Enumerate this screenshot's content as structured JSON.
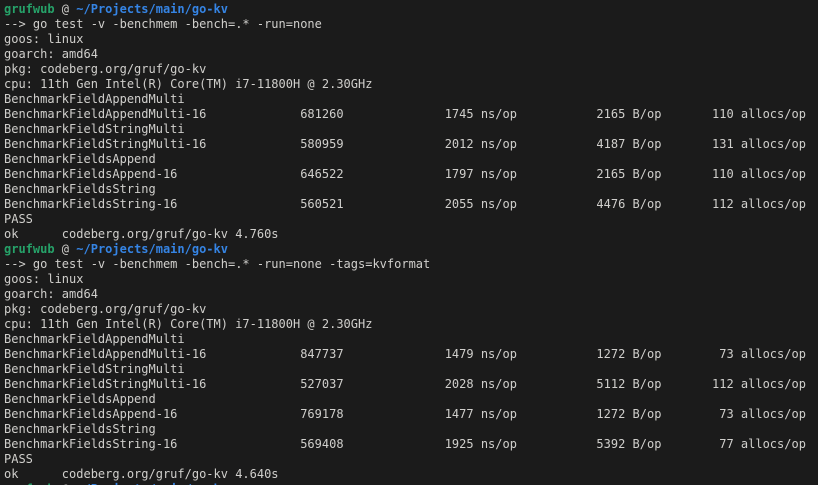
{
  "terminal": {
    "colors": {
      "background": "#1b1b1b",
      "foreground": "#d0cfcc",
      "prompt_user_green": "#26a269",
      "prompt_path_blue": "#3584e4"
    },
    "prompt": {
      "user": "grufwub",
      "separator": " @ ",
      "path": "~/Projects/main/go-kv"
    },
    "runs": [
      {
        "command": "--> go test -v -benchmem -bench=.* -run=none",
        "env_lines": [
          "goos: linux",
          "goarch: amd64",
          "pkg: codeberg.org/gruf/go-kv",
          "cpu: 11th Gen Intel(R) Core(TM) i7-11800H @ 2.30GHz"
        ],
        "benchmarks": [
          {
            "group": "BenchmarkFieldAppendMulti",
            "name": "BenchmarkFieldAppendMulti-16",
            "iterations": "681260",
            "ns_per_op": "1745 ns/op",
            "bytes_per_op": "2165 B/op",
            "allocs_per_op": "110 allocs/op"
          },
          {
            "group": "BenchmarkFieldStringMulti",
            "name": "BenchmarkFieldStringMulti-16",
            "iterations": "580959",
            "ns_per_op": "2012 ns/op",
            "bytes_per_op": "4187 B/op",
            "allocs_per_op": "131 allocs/op"
          },
          {
            "group": "BenchmarkFieldsAppend",
            "name": "BenchmarkFieldsAppend-16",
            "iterations": "646522",
            "ns_per_op": "1797 ns/op",
            "bytes_per_op": "2165 B/op",
            "allocs_per_op": "110 allocs/op"
          },
          {
            "group": "BenchmarkFieldsString",
            "name": "BenchmarkFieldsString-16",
            "iterations": "560521",
            "ns_per_op": "2055 ns/op",
            "bytes_per_op": "4476 B/op",
            "allocs_per_op": "112 allocs/op"
          }
        ],
        "pass": "PASS",
        "ok": "ok      codeberg.org/gruf/go-kv 4.760s"
      },
      {
        "command": "--> go test -v -benchmem -bench=.* -run=none -tags=kvformat",
        "env_lines": [
          "goos: linux",
          "goarch: amd64",
          "pkg: codeberg.org/gruf/go-kv",
          "cpu: 11th Gen Intel(R) Core(TM) i7-11800H @ 2.30GHz"
        ],
        "benchmarks": [
          {
            "group": "BenchmarkFieldAppendMulti",
            "name": "BenchmarkFieldAppendMulti-16",
            "iterations": "847737",
            "ns_per_op": "1479 ns/op",
            "bytes_per_op": "1272 B/op",
            "allocs_per_op": "73 allocs/op"
          },
          {
            "group": "BenchmarkFieldStringMulti",
            "name": "BenchmarkFieldStringMulti-16",
            "iterations": "527037",
            "ns_per_op": "2028 ns/op",
            "bytes_per_op": "5112 B/op",
            "allocs_per_op": "112 allocs/op"
          },
          {
            "group": "BenchmarkFieldsAppend",
            "name": "BenchmarkFieldsAppend-16",
            "iterations": "769178",
            "ns_per_op": "1477 ns/op",
            "bytes_per_op": "1272 B/op",
            "allocs_per_op": "73 allocs/op"
          },
          {
            "group": "BenchmarkFieldsString",
            "name": "BenchmarkFieldsString-16",
            "iterations": "569408",
            "ns_per_op": "1925 ns/op",
            "bytes_per_op": "5392 B/op",
            "allocs_per_op": "77 allocs/op"
          }
        ],
        "pass": "PASS",
        "ok": "ok      codeberg.org/gruf/go-kv 4.640s"
      }
    ],
    "trailing_partial_prompt": true,
    "layout_columns": {
      "name_field_width": 41,
      "iterations_field_width": 6,
      "ns_field_width": 24,
      "bytes_field_width": 20,
      "allocs_field_width": 20
    }
  }
}
